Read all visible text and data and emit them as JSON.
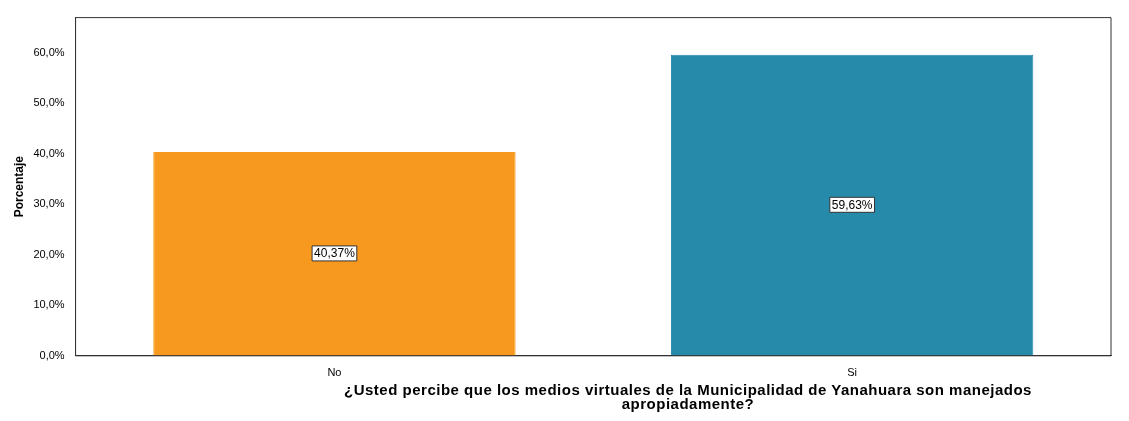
{
  "chart_data": {
    "type": "bar",
    "xlabel": "¿Usted percibe que los medios virtuales de la Municipalidad de Yanahuara son manejados apropiadamente?",
    "ylabel": "Porcentaje",
    "categories": [
      "No",
      "Si"
    ],
    "series": [
      {
        "colors": [
          "#f7991f",
          "#268bab"
        ],
        "values": [
          40.37,
          59.63
        ],
        "value_labels": [
          "40,37%",
          "59,63%"
        ]
      }
    ],
    "ylim": [
      0,
      67
    ],
    "yticks": [
      {
        "value": 0,
        "label": "0,0%"
      },
      {
        "value": 10,
        "label": "10,0%"
      },
      {
        "value": 20,
        "label": "20,0%"
      },
      {
        "value": 30,
        "label": "30,0%"
      },
      {
        "value": 40,
        "label": "40,0%"
      },
      {
        "value": 50,
        "label": "50,0%"
      },
      {
        "value": 60,
        "label": "60,0%"
      }
    ],
    "grid": false,
    "legend": false
  }
}
